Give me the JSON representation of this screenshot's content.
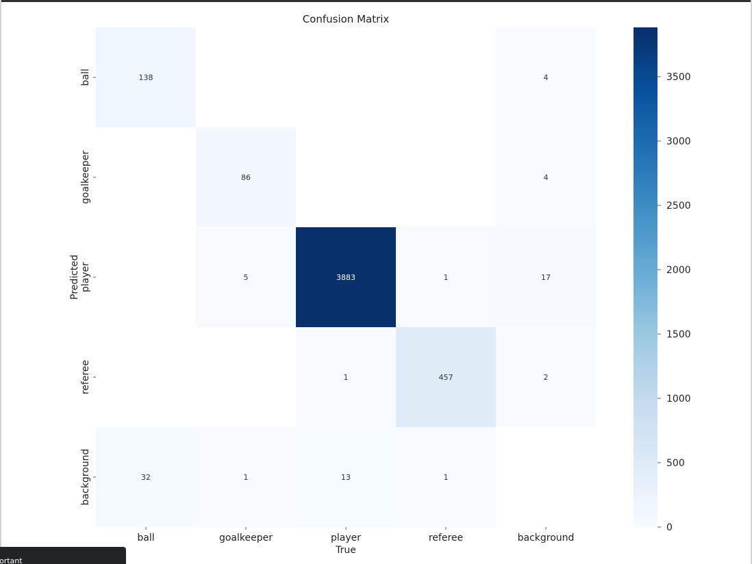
{
  "chart_data": {
    "type": "heatmap",
    "title": "Confusion Matrix",
    "xlabel": "True",
    "ylabel": "Predicted",
    "x_categories": [
      "ball",
      "goalkeeper",
      "player",
      "referee",
      "background"
    ],
    "y_categories": [
      "ball",
      "goalkeeper",
      "player",
      "referee",
      "background"
    ],
    "values": [
      [
        138,
        null,
        null,
        null,
        4
      ],
      [
        null,
        86,
        null,
        null,
        4
      ],
      [
        null,
        5,
        3883,
        1,
        17
      ],
      [
        null,
        null,
        1,
        457,
        2
      ],
      [
        32,
        1,
        13,
        1,
        null
      ]
    ],
    "colorbar": {
      "min": 0,
      "max": 3883,
      "ticks": [
        0,
        500,
        1000,
        1500,
        2000,
        2500,
        3000,
        3500
      ],
      "colormap": "Blues"
    }
  },
  "tooltip": {
    "text": "portant"
  }
}
